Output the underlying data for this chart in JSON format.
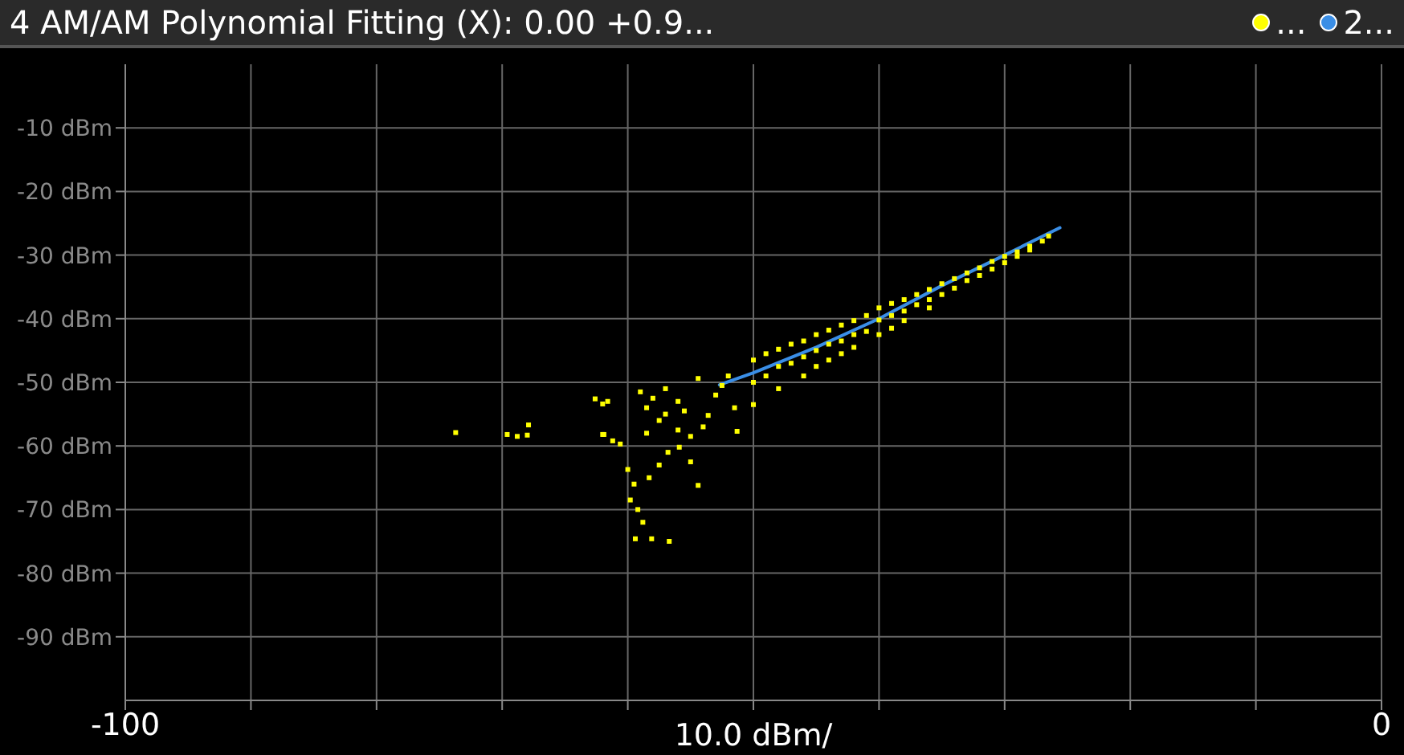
{
  "chart_data": {
    "type": "scatter",
    "title": "4 AM/AM  Polynomial Fitting (X): 0.00 +0.9...",
    "xlabel": "10.0 dBm/",
    "xlim": [
      -100,
      0
    ],
    "xticks": [
      {
        "value": -100,
        "label": "-100"
      },
      {
        "value": -90,
        "label": null
      },
      {
        "value": -80,
        "label": null
      },
      {
        "value": -70,
        "label": null
      },
      {
        "value": -60,
        "label": null
      },
      {
        "value": -50,
        "label": null
      },
      {
        "value": -40,
        "label": null
      },
      {
        "value": -30,
        "label": null
      },
      {
        "value": -20,
        "label": null
      },
      {
        "value": -10,
        "label": null
      },
      {
        "value": 0,
        "label": "0"
      }
    ],
    "ylim": [
      -100,
      0
    ],
    "yticks": [
      {
        "value": -90,
        "label": "-90 dBm"
      },
      {
        "value": -80,
        "label": "-80 dBm"
      },
      {
        "value": -70,
        "label": "-70 dBm"
      },
      {
        "value": -60,
        "label": "-60 dBm"
      },
      {
        "value": -50,
        "label": "-50 dBm"
      },
      {
        "value": -40,
        "label": "-40 dBm"
      },
      {
        "value": -30,
        "label": "-30 dBm"
      },
      {
        "value": -20,
        "label": "-20 dBm"
      },
      {
        "value": -10,
        "label": "-10 dBm"
      }
    ],
    "grid": true,
    "legend": "top right",
    "series": [
      {
        "name": "...",
        "color": "#ffff00",
        "marker": "square",
        "x": [
          -73.7,
          -69.6,
          -68.8,
          -68,
          -67.9,
          -62.6,
          -62,
          -61.6,
          -61.9,
          -61.2,
          -60.6,
          -62,
          -60,
          -59.5,
          -59.8,
          -59.2,
          -58.8,
          -59.4,
          -58.1,
          -56.7,
          -58.3,
          -57.5,
          -56.8,
          -55.9,
          -55,
          -54.4,
          -56,
          -57.5,
          -58.5,
          -55,
          -54,
          -59,
          -58,
          -57,
          -56,
          -58.5,
          -57,
          -55.5,
          -54.4,
          -53.6,
          -53,
          -52.5,
          -51.3,
          -51.5,
          -52,
          -50,
          -50,
          -50,
          -49,
          -49,
          -48,
          -48,
          -48,
          -47,
          -47,
          -46,
          -46,
          -46,
          -45,
          -45,
          -45,
          -44,
          -44,
          -44,
          -43,
          -43,
          -43,
          -42,
          -42,
          -42,
          -41,
          -41,
          -40,
          -40,
          -40,
          -39,
          -39,
          -39,
          -38,
          -38,
          -38,
          -37,
          -37,
          -36,
          -36,
          -36,
          -35,
          -35,
          -34,
          -34,
          -33,
          -33,
          -32,
          -32,
          -31,
          -31,
          -30,
          -30,
          -29,
          -29,
          -28,
          -28,
          -27,
          -26.5
        ],
        "values": [
          -57.9,
          -58.2,
          -58.5,
          -58.3,
          -56.7,
          -52.6,
          -53.4,
          -53,
          -58.2,
          -59.2,
          -59.7,
          -58.2,
          -63.7,
          -66,
          -68.5,
          -70,
          -72,
          -74.6,
          -74.6,
          -75,
          -65,
          -63,
          -61,
          -60.2,
          -62.5,
          -66.2,
          -57.5,
          -56,
          -58,
          -58.5,
          -57,
          -51.5,
          -52.5,
          -51,
          -53,
          -54,
          -55,
          -54.5,
          -49.4,
          -55.2,
          -52,
          -50.5,
          -57.7,
          -54,
          -49,
          -46.5,
          -50,
          -53.5,
          -45.5,
          -49,
          -44.8,
          -47.5,
          -51,
          -44,
          -47,
          -43.5,
          -46,
          -49,
          -42.5,
          -45,
          -47.5,
          -41.8,
          -44,
          -46.5,
          -41,
          -43.5,
          -45.5,
          -40.3,
          -42.5,
          -44.5,
          -39.5,
          -42,
          -38.3,
          -40.2,
          -42.5,
          -37.6,
          -39.5,
          -41.5,
          -37,
          -38.8,
          -40.3,
          -36.2,
          -37.8,
          -35.4,
          -37,
          -38.3,
          -34.5,
          -36.2,
          -33.7,
          -35.2,
          -32.8,
          -34,
          -32,
          -33.2,
          -31,
          -32.2,
          -30.2,
          -31.2,
          -29.5,
          -30.2,
          -28.6,
          -29.2,
          -27.8,
          -27
        ]
      },
      {
        "name": "2...",
        "type": "line",
        "color": "#3a8ee6",
        "marker": "none",
        "x": [
          -52.7,
          -50,
          -45,
          -40,
          -35,
          -30,
          -25.6
        ],
        "values": [
          -50.4,
          -48.5,
          -44.5,
          -40,
          -34.8,
          -30,
          -25.7
        ]
      }
    ]
  }
}
